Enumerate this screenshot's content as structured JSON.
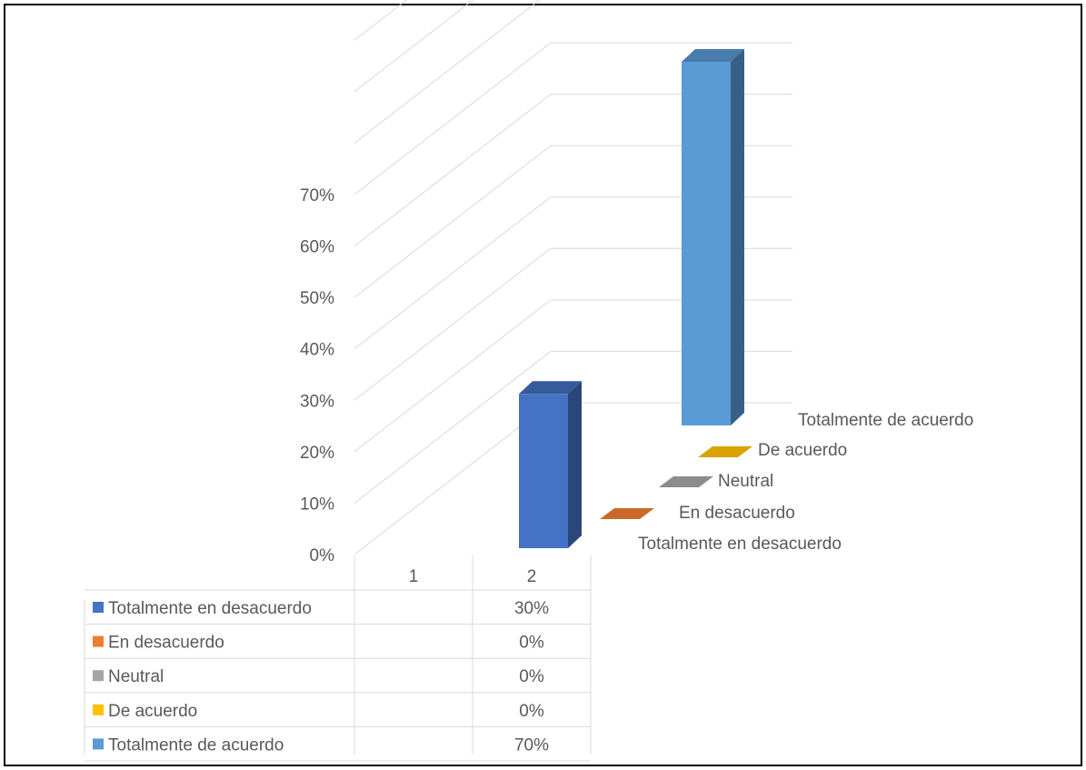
{
  "chart_data": {
    "type": "bar",
    "variant": "3d-column",
    "categories": [
      "1",
      "2"
    ],
    "series": [
      {
        "name": "Totalmente en desacuerdo",
        "color": "#4472C4",
        "values": [
          null,
          30
        ]
      },
      {
        "name": "En desacuerdo",
        "color": "#ED7D31",
        "values": [
          null,
          0
        ]
      },
      {
        "name": "Neutral",
        "color": "#A5A5A5",
        "values": [
          null,
          0
        ]
      },
      {
        "name": "De acuerdo",
        "color": "#FFC000",
        "values": [
          null,
          0
        ]
      },
      {
        "name": "Totalmente de acuerdo",
        "color": "#5B9BD5",
        "values": [
          null,
          70
        ]
      }
    ],
    "value_labels": [
      "",
      "30%",
      "0%",
      "0%",
      "0%",
      "70%"
    ],
    "y_ticks": [
      "0%",
      "10%",
      "20%",
      "30%",
      "40%",
      "50%",
      "60%",
      "70%"
    ],
    "ylim": [
      0,
      70
    ],
    "grid": true,
    "legend": "data-table",
    "title": "",
    "xlabel": "",
    "ylabel": ""
  }
}
